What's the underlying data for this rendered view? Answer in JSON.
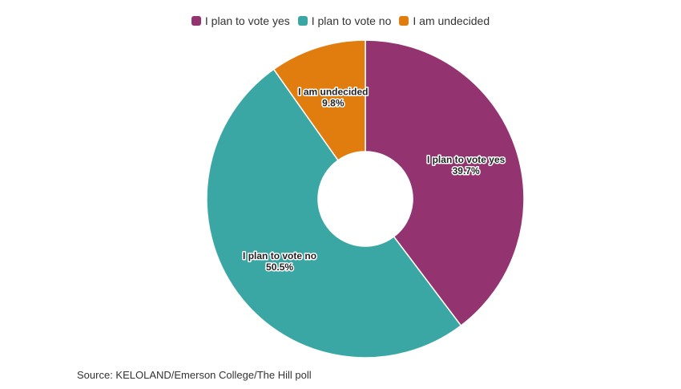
{
  "chart_data": {
    "type": "pie",
    "donut": true,
    "legend_position": "top-center",
    "categories": [
      "I plan to vote yes",
      "I plan to vote no",
      "I am undecided"
    ],
    "values": [
      39.7,
      50.5,
      9.8
    ],
    "value_labels": [
      "39.7%",
      "50.5%",
      "9.8%"
    ],
    "colors": [
      "#93336F",
      "#3AA7A5",
      "#E07D0E"
    ]
  },
  "source": "Source: KELOLAND/Emerson College/The Hill poll"
}
